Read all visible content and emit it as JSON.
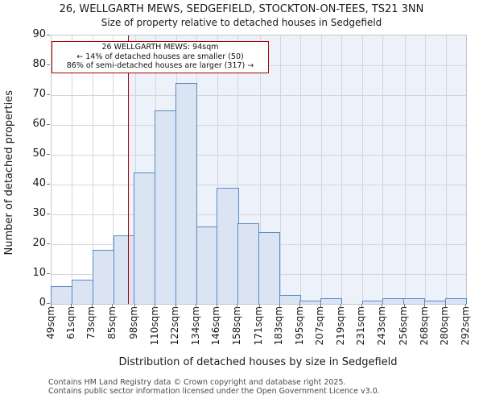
{
  "chart_data": {
    "type": "bar",
    "title": "26, WELLGARTH MEWS, SEDGEFIELD, STOCKTON-ON-TEES, TS21 3NN",
    "subtitle": "Size of property relative to detached houses in Sedgefield",
    "xlabel": "Distribution of detached houses by size in Sedgefield",
    "ylabel": "Number of detached properties",
    "categories": [
      "49sqm",
      "61sqm",
      "73sqm",
      "85sqm",
      "98sqm",
      "110sqm",
      "122sqm",
      "134sqm",
      "146sqm",
      "158sqm",
      "171sqm",
      "183sqm",
      "195sqm",
      "207sqm",
      "219sqm",
      "231sqm",
      "243sqm",
      "256sqm",
      "268sqm",
      "280sqm",
      "292sqm"
    ],
    "bin_edges_sqm": [
      49,
      61,
      73,
      85,
      98,
      110,
      122,
      134,
      146,
      158,
      171,
      183,
      195,
      207,
      219,
      231,
      243,
      256,
      268,
      280,
      292
    ],
    "values": [
      6,
      8,
      18,
      23,
      44,
      65,
      74,
      26,
      39,
      27,
      24,
      3,
      1,
      2,
      0,
      1,
      2,
      2,
      1,
      2
    ],
    "ylim": [
      0,
      90
    ],
    "yticks": [
      0,
      10,
      20,
      30,
      40,
      50,
      60,
      70,
      80,
      90
    ],
    "grid": true,
    "legend": null,
    "marker": {
      "value_sqm": 94,
      "color": "#aa0000"
    },
    "shaded_region": {
      "from_sqm": 94,
      "to_sqm": 292,
      "color": "#edf1fa"
    },
    "annotation": {
      "line1": "26 WELLGARTH MEWS: 94sqm",
      "line2": "← 14% of detached houses are smaller (50)",
      "line3": "86% of semi-detached houses are larger (317) →"
    },
    "colors": {
      "bar_fill": "#dbe4f3",
      "bar_stroke": "#5b8ac6",
      "gridline": "#d2d6dd"
    }
  },
  "footer": {
    "line1": "Contains HM Land Registry data © Crown copyright and database right 2025.",
    "line2": "Contains public sector information licensed under the Open Government Licence v3.0."
  }
}
